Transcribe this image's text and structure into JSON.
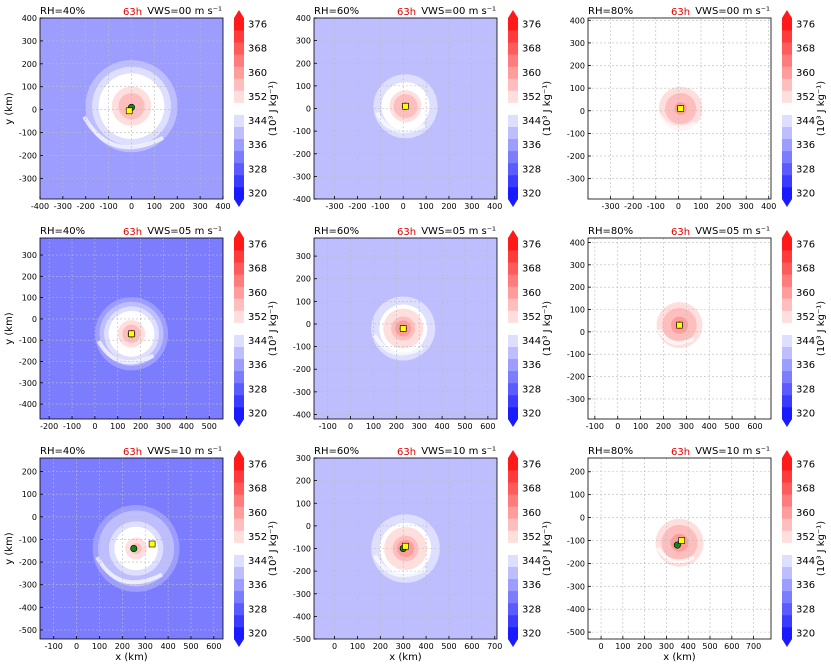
{
  "figure": {
    "xlabel": "x (km)",
    "ylabel": "y (km)",
    "colorbar_label": "(10³ J kg⁻¹)",
    "colorbar_ticks": [
      320,
      328,
      336,
      344,
      352,
      360,
      368,
      376
    ],
    "colorbar_levels": [
      320,
      324,
      328,
      332,
      336,
      340,
      344,
      348,
      352,
      356,
      360,
      364,
      368,
      372,
      376,
      380
    ],
    "colors": {
      "min": "#1a1aff",
      "mid": "#ffffff",
      "max": "#ff1a1a",
      "grid": "#bbbbbb",
      "time": "#dd0000",
      "center_green": "#118811",
      "center_yellow": "#ffff00"
    }
  },
  "chart_data": [
    {
      "type": "heatmap",
      "rh": "RH=40%",
      "time": "63h",
      "vws": "VWS=00 m s⁻¹",
      "xlim": [
        -400,
        400
      ],
      "ylim": [
        -390,
        400
      ],
      "xticks": [
        -400,
        -300,
        -200,
        -100,
        0,
        100,
        200,
        300,
        400
      ],
      "yticks": [
        -300,
        -200,
        -100,
        0,
        100,
        200,
        300,
        400
      ],
      "center": [
        0,
        15
      ],
      "env": 336,
      "core": 360,
      "radius": 230,
      "yellow": [
        -10,
        -5
      ],
      "green": [
        0,
        10
      ],
      "show_xlabel": false,
      "show_ylabel": true
    },
    {
      "type": "heatmap",
      "rh": "RH=60%",
      "time": "63h",
      "vws": "VWS=00 m s⁻¹",
      "xlim": [
        -390,
        410
      ],
      "ylim": [
        -400,
        400
      ],
      "xticks": [
        -300,
        -200,
        -100,
        0,
        100,
        200,
        300,
        400
      ],
      "yticks": [
        -400,
        -300,
        -200,
        -100,
        0,
        100,
        200,
        300,
        400
      ],
      "center": [
        10,
        10
      ],
      "env": 342,
      "core": 362,
      "radius": 140,
      "yellow": [
        10,
        10
      ],
      "green": [
        10,
        10
      ],
      "show_xlabel": false,
      "show_ylabel": false
    },
    {
      "type": "heatmap",
      "rh": "RH=80%",
      "time": "63h",
      "vws": "VWS=00 m s⁻¹",
      "xlim": [
        -400,
        410
      ],
      "ylim": [
        -390,
        410
      ],
      "xticks": [
        -300,
        -200,
        -100,
        0,
        100,
        200,
        300,
        400
      ],
      "yticks": [
        -300,
        -200,
        -100,
        0,
        100,
        200,
        300,
        400
      ],
      "center": [
        10,
        10
      ],
      "env": 350,
      "core": 364,
      "radius": 110,
      "yellow": [
        10,
        10
      ],
      "green": [
        10,
        10
      ],
      "show_xlabel": false,
      "show_ylabel": false
    },
    {
      "type": "heatmap",
      "rh": "RH=40%",
      "time": "63h",
      "vws": "VWS=05 m s⁻¹",
      "xlim": [
        -240,
        560
      ],
      "ylim": [
        -470,
        380
      ],
      "xticks": [
        -200,
        -100,
        0,
        100,
        200,
        300,
        400,
        500
      ],
      "yticks": [
        -400,
        -300,
        -200,
        -100,
        0,
        100,
        200,
        300
      ],
      "center": [
        160,
        -70
      ],
      "env": 334,
      "core": 362,
      "radius": 160,
      "yellow": [
        160,
        -70
      ],
      "green": [
        160,
        -70
      ],
      "show_xlabel": false,
      "show_ylabel": true
    },
    {
      "type": "heatmap",
      "rh": "RH=60%",
      "time": "63h",
      "vws": "VWS=05 m s⁻¹",
      "xlim": [
        -160,
        640
      ],
      "ylim": [
        -420,
        380
      ],
      "xticks": [
        -100,
        0,
        100,
        200,
        300,
        400,
        500,
        600
      ],
      "yticks": [
        -400,
        -300,
        -200,
        -100,
        0,
        100,
        200,
        300
      ],
      "center": [
        230,
        -20
      ],
      "env": 342,
      "core": 364,
      "radius": 140,
      "yellow": [
        230,
        -20
      ],
      "green": [
        230,
        -20
      ],
      "show_xlabel": false,
      "show_ylabel": false
    },
    {
      "type": "heatmap",
      "rh": "RH=80%",
      "time": "63h",
      "vws": "VWS=05 m s⁻¹",
      "xlim": [
        -130,
        670
      ],
      "ylim": [
        -390,
        420
      ],
      "xticks": [
        -100,
        0,
        100,
        200,
        300,
        400,
        500,
        600
      ],
      "yticks": [
        -300,
        -200,
        -100,
        0,
        100,
        200,
        300,
        400
      ],
      "center": [
        270,
        30
      ],
      "env": 351,
      "core": 366,
      "radius": 100,
      "yellow": [
        270,
        30
      ],
      "green": [
        270,
        30
      ],
      "show_xlabel": false,
      "show_ylabel": false
    },
    {
      "type": "heatmap",
      "rh": "RH=40%",
      "time": "63h",
      "vws": "VWS=10 m s⁻¹",
      "xlim": [
        -160,
        640
      ],
      "ylim": [
        -540,
        260
      ],
      "xticks": [
        -100,
        0,
        100,
        200,
        300,
        400,
        500,
        600
      ],
      "yticks": [
        -500,
        -400,
        -300,
        -200,
        -100,
        0,
        100,
        200
      ],
      "center": [
        260,
        -140
      ],
      "env": 334,
      "core": 358,
      "radius": 190,
      "yellow": [
        330,
        -120
      ],
      "green": [
        250,
        -140
      ],
      "show_xlabel": true,
      "show_ylabel": true
    },
    {
      "type": "heatmap",
      "rh": "RH=60%",
      "time": "63h",
      "vws": "VWS=10 m s⁻¹",
      "xlim": [
        -90,
        710
      ],
      "ylim": [
        -500,
        300
      ],
      "xticks": [
        0,
        100,
        200,
        300,
        400,
        500,
        600,
        700
      ],
      "yticks": [
        -500,
        -400,
        -300,
        -200,
        -100,
        0,
        100,
        200,
        300
      ],
      "center": [
        310,
        -100
      ],
      "env": 342,
      "core": 364,
      "radius": 150,
      "yellow": [
        310,
        -90
      ],
      "green": [
        300,
        -100
      ],
      "show_xlabel": true,
      "show_ylabel": false
    },
    {
      "type": "heatmap",
      "rh": "RH=80%",
      "time": "63h",
      "vws": "VWS=10 m s⁻¹",
      "xlim": [
        -60,
        780
      ],
      "ylim": [
        -530,
        260
      ],
      "xticks": [
        0,
        100,
        200,
        300,
        400,
        500,
        600,
        700
      ],
      "yticks": [
        -500,
        -400,
        -300,
        -200,
        -100,
        0,
        100,
        200
      ],
      "center": [
        360,
        -110
      ],
      "env": 351,
      "core": 366,
      "radius": 110,
      "yellow": [
        370,
        -100
      ],
      "green": [
        350,
        -120
      ],
      "show_xlabel": true,
      "show_ylabel": false
    }
  ]
}
